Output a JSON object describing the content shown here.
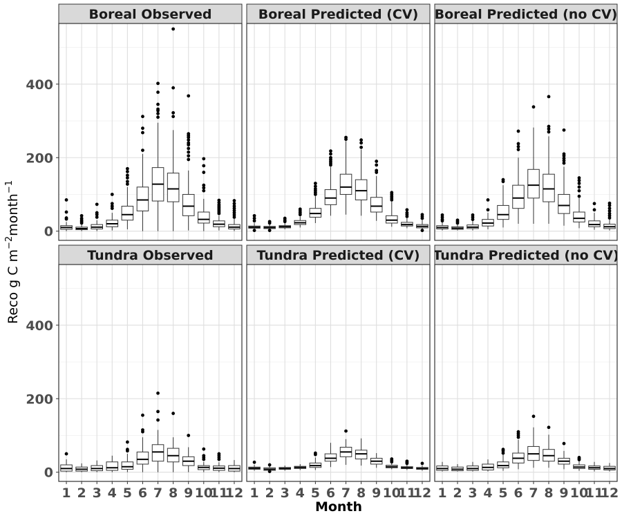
{
  "chart_data": {
    "type": "boxplot",
    "facet_layout": "2x3 grid",
    "xlabel": "Month",
    "ylabel_main": "Reco g C m",
    "ylabel_sup1": "−2",
    "ylabel_mid": "month",
    "ylabel_sup2": "−1",
    "ylim": [
      -25,
      565
    ],
    "yticks": [
      0,
      200,
      400
    ],
    "categories": [
      "1",
      "2",
      "3",
      "4",
      "5",
      "6",
      "7",
      "8",
      "9",
      "10",
      "11",
      "12"
    ],
    "grid": true,
    "panels": [
      {
        "title": "Boreal Observed",
        "boxes": [
          {
            "q1": 5,
            "med": 10,
            "q3": 15,
            "lo": 0,
            "hi": 25,
            "out": [
              33,
              36,
              52,
              85
            ]
          },
          {
            "q1": 4,
            "med": 7,
            "q3": 11,
            "lo": 0,
            "hi": 18,
            "out": [
              22,
              26,
              30,
              35,
              42
            ]
          },
          {
            "q1": 6,
            "med": 11,
            "q3": 18,
            "lo": 0,
            "hi": 30,
            "out": [
              38,
              45,
              50,
              73
            ]
          },
          {
            "q1": 12,
            "med": 20,
            "q3": 30,
            "lo": 2,
            "hi": 50,
            "out": [
              62,
              68,
              75,
              100
            ]
          },
          {
            "q1": 30,
            "med": 45,
            "q3": 68,
            "lo": 5,
            "hi": 120,
            "out": [
              128,
              135,
              145,
              152,
              162,
              170
            ]
          },
          {
            "q1": 55,
            "med": 85,
            "q3": 120,
            "lo": 0,
            "hi": 210,
            "out": [
              220,
              268,
              280,
              312
            ]
          },
          {
            "q1": 82,
            "med": 128,
            "q3": 173,
            "lo": 0,
            "hi": 295,
            "out": [
              310,
              320,
              328,
              332,
              345,
              378,
              402
            ]
          },
          {
            "q1": 80,
            "med": 115,
            "q3": 158,
            "lo": 0,
            "hi": 275,
            "out": [
              312,
              322,
              390,
              550
            ]
          },
          {
            "q1": 42,
            "med": 68,
            "q3": 100,
            "lo": 2,
            "hi": 165,
            "out": [
              195,
              205,
              215,
              225,
              235,
              240,
              248,
              255,
              260,
              265,
              368
            ]
          },
          {
            "q1": 22,
            "med": 32,
            "q3": 52,
            "lo": 0,
            "hi": 88,
            "out": [
              110,
              118,
              125,
              160,
              178,
              197
            ]
          },
          {
            "q1": 12,
            "med": 19,
            "q3": 28,
            "lo": 2,
            "hi": 42,
            "out": [
              48,
              52,
              56,
              60,
              64,
              68,
              72,
              78,
              84
            ]
          },
          {
            "q1": 6,
            "med": 11,
            "q3": 18,
            "lo": 0,
            "hi": 33,
            "out": [
              38,
              44,
              50,
              56,
              62,
              68,
              75,
              83
            ]
          }
        ]
      },
      {
        "title": "Boreal Predicted (CV)",
        "boxes": [
          {
            "q1": 8,
            "med": 11,
            "q3": 14,
            "lo": 3,
            "hi": 22,
            "out": [
              2,
              28,
              35,
              42
            ]
          },
          {
            "q1": 7,
            "med": 10,
            "q3": 13,
            "lo": 3,
            "hi": 19,
            "out": [
              2,
              22,
              26
            ]
          },
          {
            "q1": 9,
            "med": 12,
            "q3": 15,
            "lo": 5,
            "hi": 22,
            "out": [
              26,
              30,
              35
            ]
          },
          {
            "q1": 18,
            "med": 23,
            "q3": 29,
            "lo": 10,
            "hi": 40,
            "out": [
              45,
              50,
              55,
              60
            ]
          },
          {
            "q1": 38,
            "med": 48,
            "q3": 62,
            "lo": 22,
            "hi": 95,
            "out": [
              100,
              105,
              110,
              115,
              122,
              130
            ]
          },
          {
            "q1": 72,
            "med": 90,
            "q3": 113,
            "lo": 42,
            "hi": 175,
            "out": [
              180,
              185,
              190,
              195,
              200,
              210,
              218
            ]
          },
          {
            "q1": 100,
            "med": 120,
            "q3": 155,
            "lo": 45,
            "hi": 245,
            "out": [
              250,
              255
            ]
          },
          {
            "q1": 85,
            "med": 110,
            "q3": 140,
            "lo": 42,
            "hi": 222,
            "out": [
              228,
              240,
              248
            ]
          },
          {
            "q1": 52,
            "med": 68,
            "q3": 92,
            "lo": 28,
            "hi": 150,
            "out": [
              160,
              165,
              180,
              190
            ]
          },
          {
            "q1": 22,
            "med": 30,
            "q3": 42,
            "lo": 12,
            "hi": 80,
            "out": [
              85,
              90,
              95,
              100,
              105
            ]
          },
          {
            "q1": 14,
            "med": 18,
            "q3": 24,
            "lo": 8,
            "hi": 35,
            "out": [
              40,
              45,
              50,
              58
            ]
          },
          {
            "q1": 9,
            "med": 13,
            "q3": 18,
            "lo": 3,
            "hi": 30,
            "out": [
              2,
              35,
              40,
              45
            ]
          }
        ]
      },
      {
        "title": "Boreal Predicted (no CV)",
        "boxes": [
          {
            "q1": 6,
            "med": 10,
            "q3": 15,
            "lo": 2,
            "hi": 25,
            "out": [
              28,
              32,
              38,
              44
            ]
          },
          {
            "q1": 5,
            "med": 8,
            "q3": 12,
            "lo": 2,
            "hi": 18,
            "out": [
              22,
              26,
              30
            ]
          },
          {
            "q1": 7,
            "med": 11,
            "q3": 17,
            "lo": 2,
            "hi": 28,
            "out": [
              32,
              38,
              44
            ]
          },
          {
            "q1": 14,
            "med": 22,
            "q3": 32,
            "lo": 5,
            "hi": 50,
            "out": [
              58,
              85
            ]
          },
          {
            "q1": 32,
            "med": 45,
            "q3": 70,
            "lo": 10,
            "hi": 125,
            "out": [
              135,
              140
            ]
          },
          {
            "q1": 62,
            "med": 90,
            "q3": 125,
            "lo": 20,
            "hi": 200,
            "out": [
              222,
              230,
              238,
              272
            ]
          },
          {
            "q1": 90,
            "med": 125,
            "q3": 168,
            "lo": 20,
            "hi": 282,
            "out": [
              338
            ]
          },
          {
            "q1": 80,
            "med": 115,
            "q3": 155,
            "lo": 20,
            "hi": 258,
            "out": [
              270,
              278,
              285,
              366
            ]
          },
          {
            "q1": 48,
            "med": 70,
            "q3": 100,
            "lo": 15,
            "hi": 175,
            "out": [
              185,
              192,
              198,
              205,
              210,
              275
            ]
          },
          {
            "q1": 25,
            "med": 35,
            "q3": 52,
            "lo": 8,
            "hi": 90,
            "out": [
              95,
              110,
              120,
              130,
              138,
              145
            ]
          },
          {
            "q1": 12,
            "med": 18,
            "q3": 28,
            "lo": 4,
            "hi": 50,
            "out": [
              58,
              75
            ]
          },
          {
            "q1": 7,
            "med": 12,
            "q3": 19,
            "lo": 2,
            "hi": 32,
            "out": [
              36,
              42,
              48,
              55,
              62,
              70,
              76
            ]
          }
        ]
      },
      {
        "title": "Tundra Observed",
        "boxes": [
          {
            "q1": 3,
            "med": 10,
            "q3": 20,
            "lo": 0,
            "hi": 35,
            "out": [
              50
            ]
          },
          {
            "q1": 3,
            "med": 8,
            "q3": 14,
            "lo": 0,
            "hi": 24,
            "out": []
          },
          {
            "q1": 4,
            "med": 10,
            "q3": 18,
            "lo": 0,
            "hi": 32,
            "out": []
          },
          {
            "q1": 5,
            "med": 12,
            "q3": 28,
            "lo": 0,
            "hi": 45,
            "out": []
          },
          {
            "q1": 8,
            "med": 15,
            "q3": 28,
            "lo": 0,
            "hi": 50,
            "out": [
              58,
              62,
              82
            ]
          },
          {
            "q1": 22,
            "med": 35,
            "q3": 55,
            "lo": 0,
            "hi": 95,
            "out": [
              110,
              115,
              155
            ]
          },
          {
            "q1": 30,
            "med": 55,
            "q3": 75,
            "lo": 0,
            "hi": 115,
            "out": [
              142,
              165,
              215
            ]
          },
          {
            "q1": 28,
            "med": 45,
            "q3": 65,
            "lo": 0,
            "hi": 95,
            "out": [
              160
            ]
          },
          {
            "q1": 18,
            "med": 30,
            "q3": 42,
            "lo": 0,
            "hi": 68,
            "out": [
              100
            ]
          },
          {
            "q1": 7,
            "med": 13,
            "q3": 18,
            "lo": 0,
            "hi": 28,
            "out": [
              35,
              40,
              45,
              63
            ]
          },
          {
            "q1": 5,
            "med": 11,
            "q3": 17,
            "lo": 0,
            "hi": 27,
            "out": [
              35,
              40,
              45,
              50
            ]
          },
          {
            "q1": 3,
            "med": 10,
            "q3": 18,
            "lo": 0,
            "hi": 33,
            "out": []
          }
        ]
      },
      {
        "title": "Tundra Predicted (CV)",
        "boxes": [
          {
            "q1": 8,
            "med": 11,
            "q3": 14,
            "lo": 4,
            "hi": 20,
            "out": [
              27
            ]
          },
          {
            "q1": 5,
            "med": 8,
            "q3": 12,
            "lo": 0,
            "hi": 18,
            "out": [
              2,
              20
            ]
          },
          {
            "q1": 8,
            "med": 10,
            "q3": 13,
            "lo": 4,
            "hi": 18,
            "out": []
          },
          {
            "q1": 10,
            "med": 13,
            "q3": 16,
            "lo": 6,
            "hi": 22,
            "out": []
          },
          {
            "q1": 13,
            "med": 18,
            "q3": 25,
            "lo": 6,
            "hi": 40,
            "out": [
              48,
              52
            ]
          },
          {
            "q1": 30,
            "med": 38,
            "q3": 50,
            "lo": 14,
            "hi": 80,
            "out": []
          },
          {
            "q1": 42,
            "med": 55,
            "q3": 68,
            "lo": 20,
            "hi": 90,
            "out": [
              112
            ]
          },
          {
            "q1": 36,
            "med": 50,
            "q3": 60,
            "lo": 18,
            "hi": 92,
            "out": []
          },
          {
            "q1": 22,
            "med": 30,
            "q3": 38,
            "lo": 12,
            "hi": 52,
            "out": []
          },
          {
            "q1": 12,
            "med": 15,
            "q3": 19,
            "lo": 8,
            "hi": 25,
            "out": [
              28,
              32,
              36
            ]
          },
          {
            "q1": 10,
            "med": 12,
            "q3": 15,
            "lo": 6,
            "hi": 20,
            "out": [
              24,
              27,
              30
            ]
          },
          {
            "q1": 8,
            "med": 10,
            "q3": 13,
            "lo": 4,
            "hi": 18,
            "out": [
              24
            ]
          }
        ]
      },
      {
        "title": "Tundra Predicted (no CV)",
        "boxes": [
          {
            "q1": 5,
            "med": 10,
            "q3": 17,
            "lo": 2,
            "hi": 28,
            "out": []
          },
          {
            "q1": 4,
            "med": 8,
            "q3": 14,
            "lo": 2,
            "hi": 22,
            "out": []
          },
          {
            "q1": 5,
            "med": 10,
            "q3": 17,
            "lo": 2,
            "hi": 28,
            "out": []
          },
          {
            "q1": 6,
            "med": 13,
            "q3": 22,
            "lo": 2,
            "hi": 35,
            "out": []
          },
          {
            "q1": 12,
            "med": 18,
            "q3": 28,
            "lo": 4,
            "hi": 48,
            "out": [
              52,
              58,
              62
            ]
          },
          {
            "q1": 25,
            "med": 38,
            "q3": 52,
            "lo": 8,
            "hi": 88,
            "out": [
              95,
              100,
              105,
              110
            ]
          },
          {
            "q1": 32,
            "med": 50,
            "q3": 70,
            "lo": 12,
            "hi": 122,
            "out": [
              152
            ]
          },
          {
            "q1": 30,
            "med": 45,
            "q3": 62,
            "lo": 12,
            "hi": 102,
            "out": [
              122
            ]
          },
          {
            "q1": 22,
            "med": 30,
            "q3": 38,
            "lo": 8,
            "hi": 58,
            "out": [
              78
            ]
          },
          {
            "q1": 10,
            "med": 14,
            "q3": 20,
            "lo": 4,
            "hi": 30,
            "out": [
              34,
              37,
              40
            ]
          },
          {
            "q1": 8,
            "med": 12,
            "q3": 17,
            "lo": 2,
            "hi": 28,
            "out": []
          },
          {
            "q1": 6,
            "med": 10,
            "q3": 16,
            "lo": 2,
            "hi": 25,
            "out": []
          }
        ]
      }
    ]
  }
}
